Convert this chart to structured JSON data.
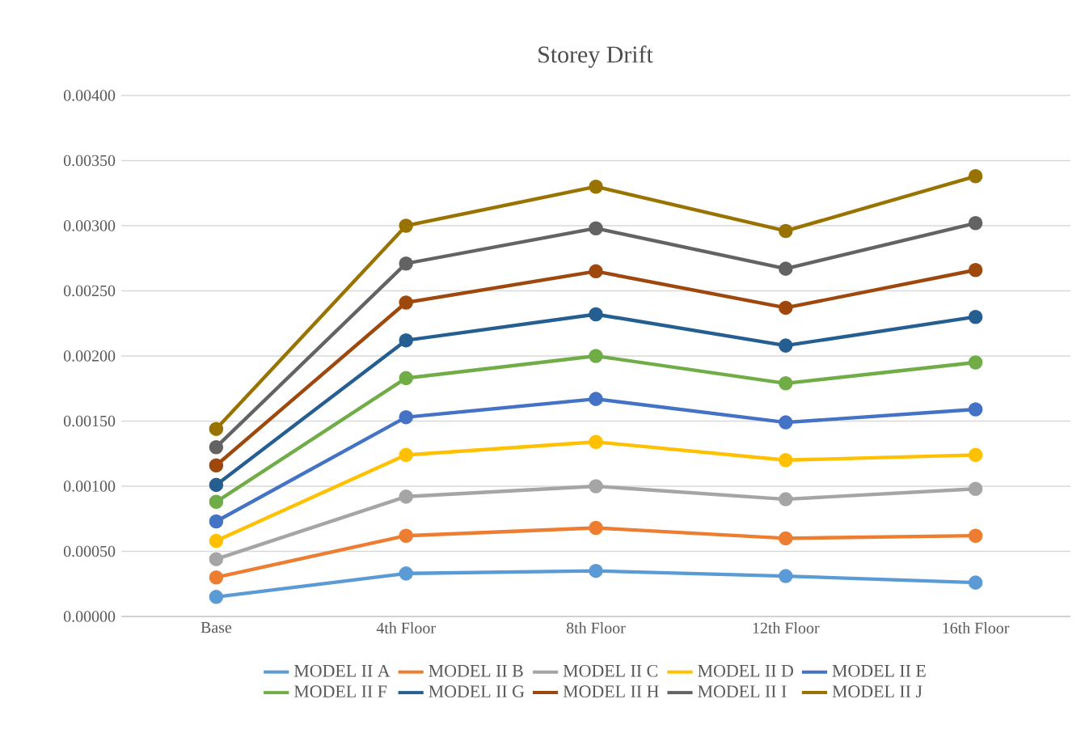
{
  "chart_data": {
    "type": "line",
    "title": "Storey Drift",
    "categories": [
      "Base",
      "4th Floor",
      "8th Floor",
      "12th Floor",
      "16th Floor"
    ],
    "series": [
      {
        "name": "MODEL II A",
        "color": "#5b9bd5",
        "values": [
          0.00015,
          0.00033,
          0.00035,
          0.00031,
          0.00026
        ]
      },
      {
        "name": "MODEL II B",
        "color": "#ed7d31",
        "values": [
          0.0003,
          0.00062,
          0.00068,
          0.0006,
          0.00062
        ]
      },
      {
        "name": "MODEL II C",
        "color": "#a5a5a5",
        "values": [
          0.00044,
          0.00092,
          0.001,
          0.0009,
          0.00098
        ]
      },
      {
        "name": "MODEL II D",
        "color": "#ffc000",
        "values": [
          0.00058,
          0.00124,
          0.00134,
          0.0012,
          0.00124
        ]
      },
      {
        "name": "MODEL II E",
        "color": "#4472c4",
        "values": [
          0.00073,
          0.00153,
          0.00167,
          0.00149,
          0.00159
        ]
      },
      {
        "name": "MODEL II F",
        "color": "#70ad47",
        "values": [
          0.00088,
          0.00183,
          0.002,
          0.00179,
          0.00195
        ]
      },
      {
        "name": "MODEL II G",
        "color": "#255e91",
        "values": [
          0.00101,
          0.00212,
          0.00232,
          0.00208,
          0.0023
        ]
      },
      {
        "name": "MODEL II H",
        "color": "#9e480e",
        "values": [
          0.00116,
          0.00241,
          0.00265,
          0.00237,
          0.00266
        ]
      },
      {
        "name": "MODEL II I",
        "color": "#636363",
        "values": [
          0.0013,
          0.00271,
          0.00298,
          0.00267,
          0.00302
        ]
      },
      {
        "name": "MODEL II J",
        "color": "#997300",
        "values": [
          0.00144,
          0.003,
          0.0033,
          0.00296,
          0.00338
        ]
      }
    ],
    "ylim": [
      0,
      0.004
    ],
    "yticks": [
      {
        "value": 0,
        "label": "0.00000"
      },
      {
        "value": 0.0005,
        "label": "0.00050"
      },
      {
        "value": 0.001,
        "label": "0.00100"
      },
      {
        "value": 0.0015,
        "label": "0.00150"
      },
      {
        "value": 0.002,
        "label": "0.00200"
      },
      {
        "value": 0.0025,
        "label": "0.00250"
      },
      {
        "value": 0.003,
        "label": "0.00300"
      },
      {
        "value": 0.0035,
        "label": "0.00350"
      },
      {
        "value": 0.004,
        "label": "0.00400"
      }
    ],
    "grid": "y",
    "legend": "bottom",
    "marker": "circle",
    "line_style": "solid"
  }
}
